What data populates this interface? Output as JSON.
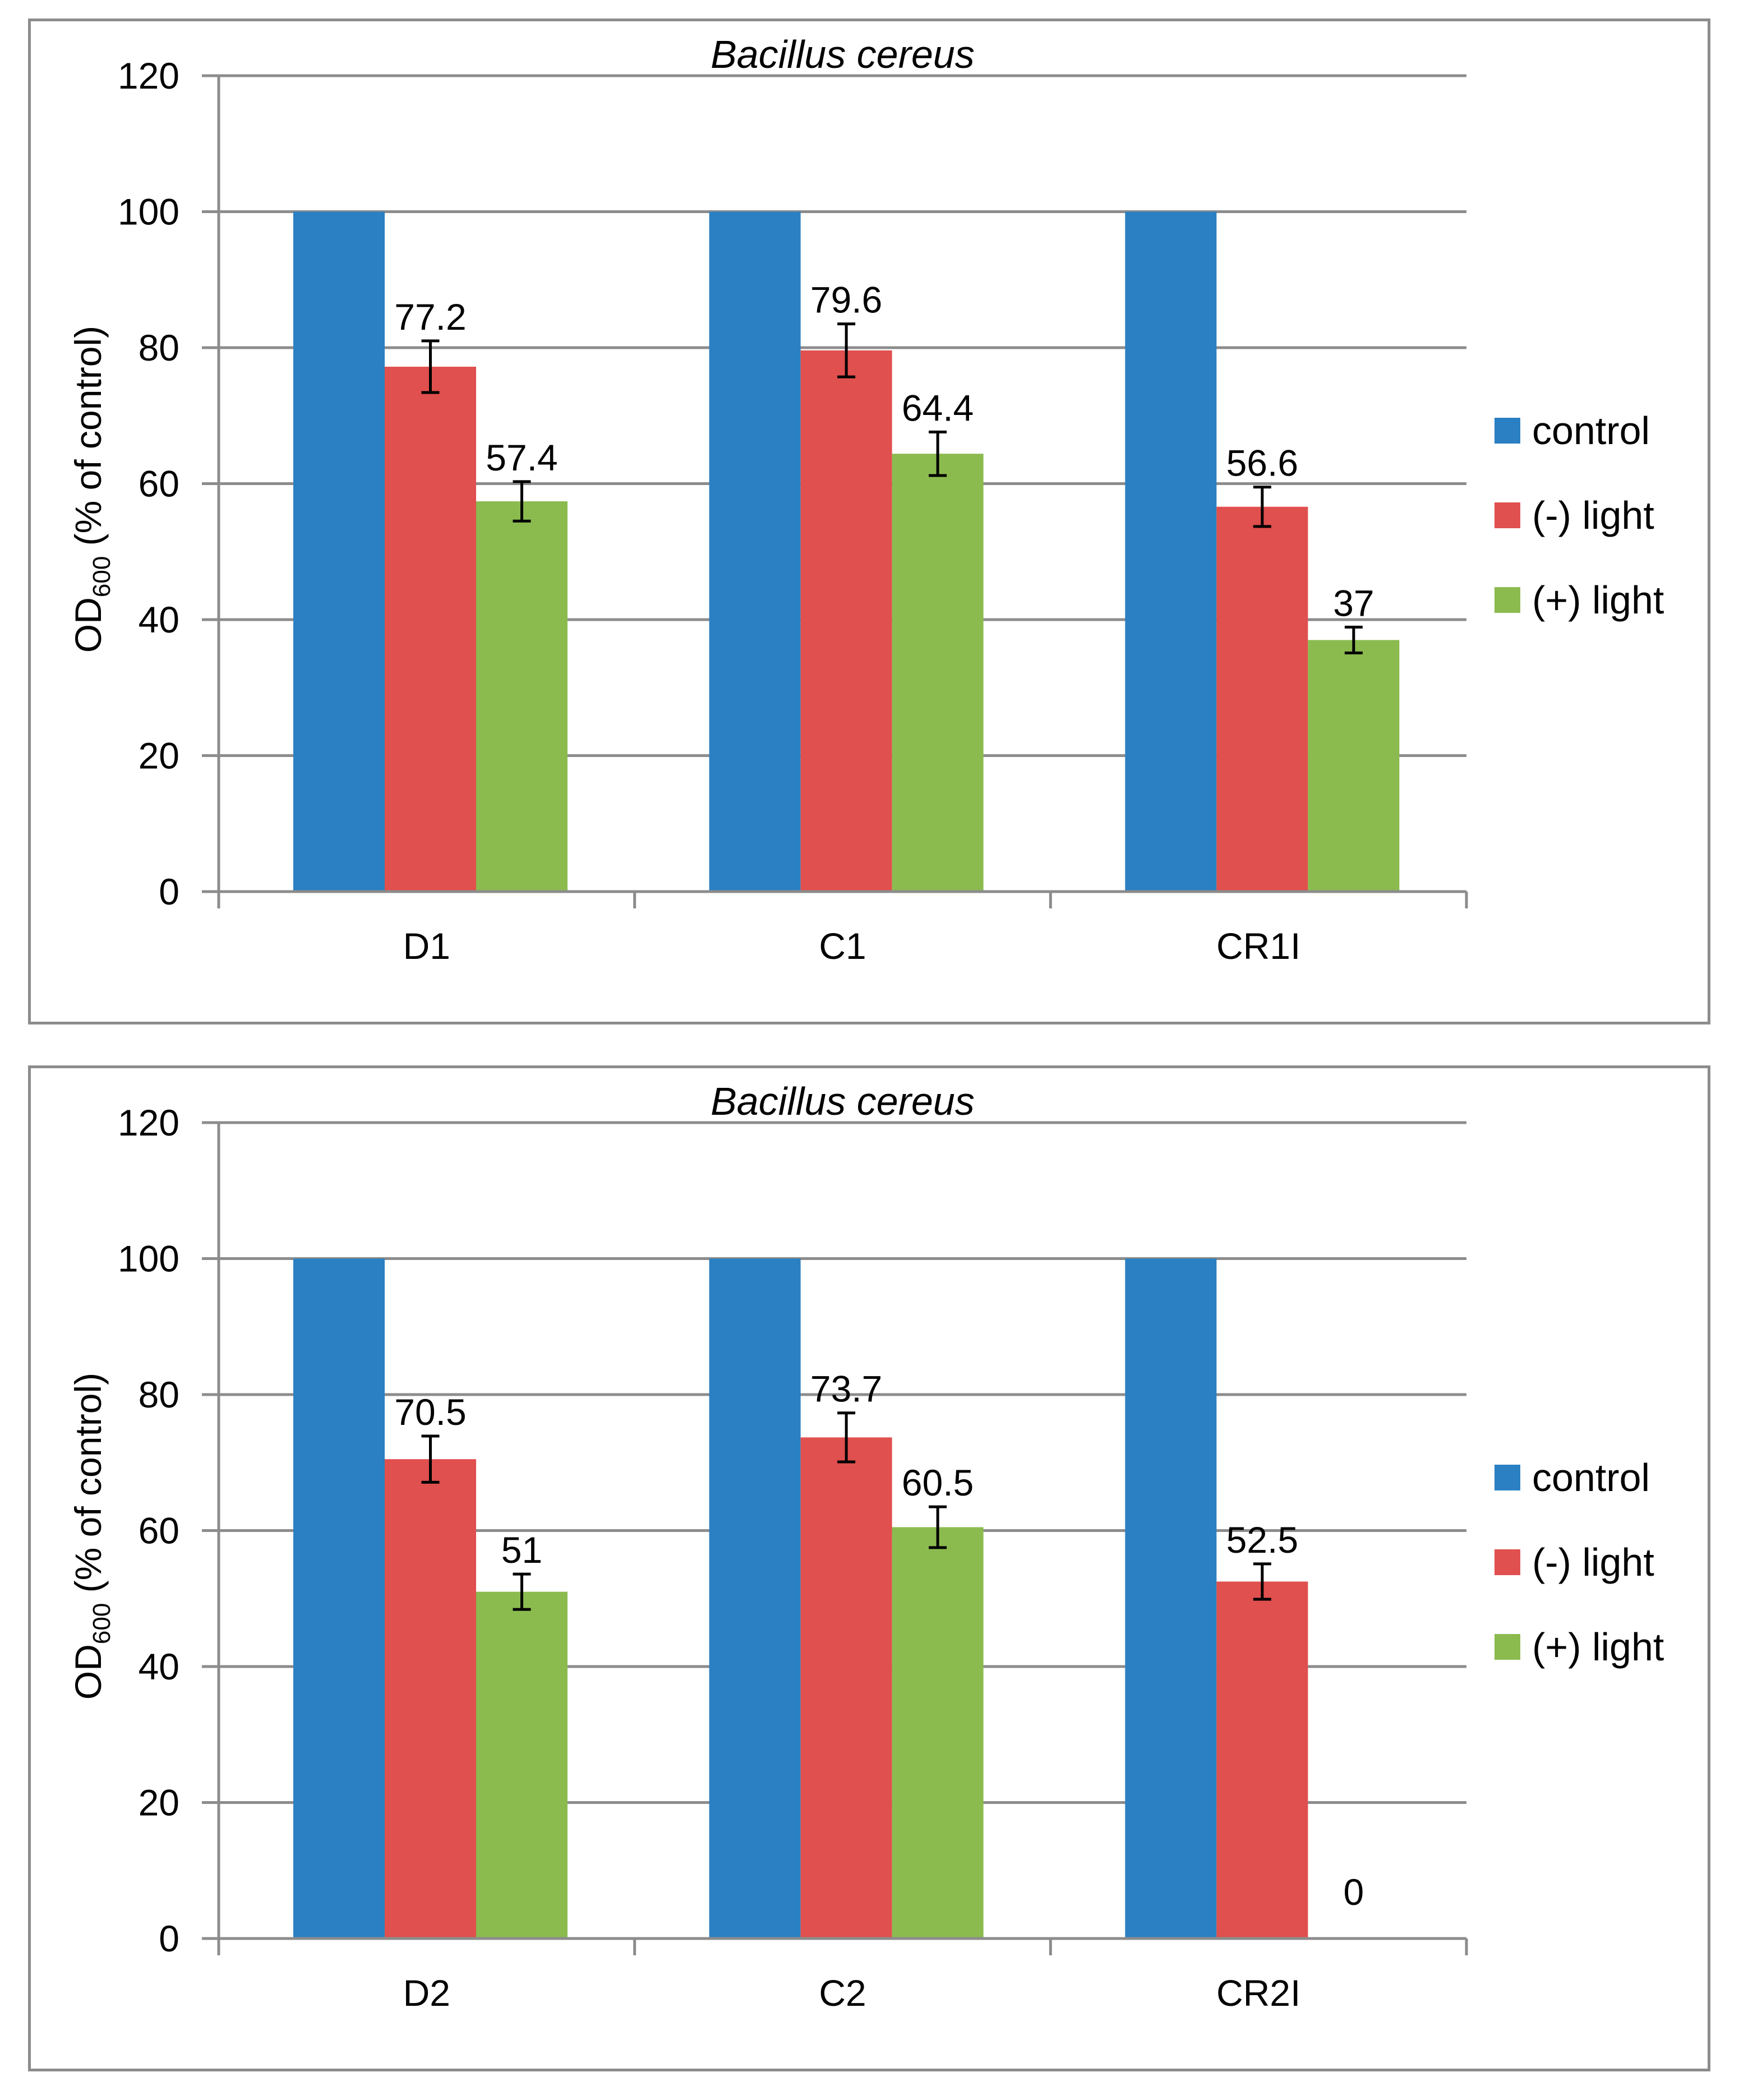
{
  "chart_data": [
    {
      "type": "bar",
      "title": "Bacillus cereus",
      "ylabel": {
        "main": "OD",
        "sub": "600",
        "suffix": " (% of control)"
      },
      "xlabel": "",
      "ylim": [
        0,
        120
      ],
      "yticks": [
        "0",
        "20",
        "40",
        "60",
        "80",
        "100",
        "120"
      ],
      "grid": true,
      "legend_position": "right",
      "categories": [
        "D1",
        "C1",
        "CR1I"
      ],
      "series": [
        {
          "name": "control",
          "color": "#2a80c2",
          "values": [
            100,
            100,
            100
          ],
          "errors": null,
          "labels": [
            "",
            "",
            ""
          ]
        },
        {
          "name": "(-) light",
          "color": "#e0504e",
          "values": [
            77.2,
            79.6,
            56.6
          ],
          "errors": [
            3.8,
            3.9,
            2.9
          ],
          "labels": [
            "77.2",
            "79.6",
            "56.6"
          ]
        },
        {
          "name": "(+) light",
          "color": "#8bbb4f",
          "values": [
            57.4,
            64.4,
            37
          ],
          "errors": [
            2.9,
            3.2,
            1.9
          ],
          "labels": [
            "57.4",
            "64.4",
            "37"
          ]
        }
      ]
    },
    {
      "type": "bar",
      "title": "Bacillus cereus",
      "ylabel": {
        "main": "OD",
        "sub": "600",
        "suffix": " (% of control)"
      },
      "xlabel": "",
      "ylim": [
        0,
        120
      ],
      "yticks": [
        "0",
        "20",
        "40",
        "60",
        "80",
        "100",
        "120"
      ],
      "grid": true,
      "legend_position": "right",
      "categories": [
        "D2",
        "C2",
        "CR2I"
      ],
      "series": [
        {
          "name": "control",
          "color": "#2a80c2",
          "values": [
            100,
            100,
            100
          ],
          "errors": null,
          "labels": [
            "",
            "",
            ""
          ]
        },
        {
          "name": "(-) light",
          "color": "#e0504e",
          "values": [
            70.5,
            73.7,
            52.5
          ],
          "errors": [
            3.4,
            3.6,
            2.6
          ],
          "labels": [
            "70.5",
            "73.7",
            "52.5"
          ]
        },
        {
          "name": "(+) light",
          "color": "#8bbb4f",
          "values": [
            51,
            60.5,
            0
          ],
          "errors": [
            2.6,
            3.0,
            null
          ],
          "labels": [
            "51",
            "60.5",
            "0"
          ]
        }
      ]
    }
  ]
}
